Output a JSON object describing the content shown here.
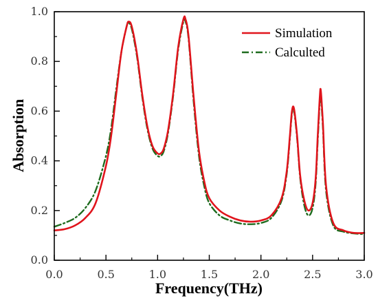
{
  "chart_data": {
    "type": "line",
    "title": "",
    "xlabel": "Frequency(THz)",
    "ylabel": "Absorption",
    "xlim": [
      0.0,
      3.0
    ],
    "ylim": [
      0.0,
      1.0
    ],
    "xticks": [
      "0.0",
      "0.5",
      "1.0",
      "1.5",
      "2.0",
      "2.5",
      "3.0"
    ],
    "yticks": [
      "0.0",
      "0.2",
      "0.4",
      "0.6",
      "0.8",
      "1.0"
    ],
    "grid": false,
    "legend_position": "top-right",
    "series": [
      {
        "name": "Simulation",
        "color": "#e0141c",
        "style": "solid",
        "x": [
          0.0,
          0.1,
          0.2,
          0.3,
          0.4,
          0.5,
          0.55,
          0.6,
          0.65,
          0.7,
          0.72,
          0.75,
          0.8,
          0.85,
          0.9,
          0.95,
          1.0,
          1.03,
          1.06,
          1.1,
          1.15,
          1.2,
          1.25,
          1.27,
          1.3,
          1.35,
          1.4,
          1.45,
          1.5,
          1.6,
          1.7,
          1.8,
          1.9,
          2.0,
          2.1,
          2.2,
          2.25,
          2.28,
          2.3,
          2.32,
          2.35,
          2.38,
          2.42,
          2.46,
          2.5,
          2.53,
          2.55,
          2.57,
          2.58,
          2.6,
          2.63,
          2.7,
          2.8,
          2.9,
          3.0
        ],
        "y": [
          0.12,
          0.125,
          0.14,
          0.17,
          0.23,
          0.38,
          0.5,
          0.67,
          0.84,
          0.94,
          0.96,
          0.94,
          0.83,
          0.67,
          0.54,
          0.46,
          0.43,
          0.43,
          0.45,
          0.52,
          0.67,
          0.86,
          0.97,
          0.97,
          0.9,
          0.65,
          0.44,
          0.32,
          0.25,
          0.2,
          0.175,
          0.16,
          0.155,
          0.16,
          0.18,
          0.25,
          0.36,
          0.5,
          0.6,
          0.61,
          0.5,
          0.34,
          0.24,
          0.2,
          0.23,
          0.33,
          0.5,
          0.66,
          0.68,
          0.55,
          0.3,
          0.15,
          0.12,
          0.11,
          0.11
        ]
      },
      {
        "name": "Calculted",
        "color": "#1e6b1e",
        "style": "dash-dot",
        "x": [
          0.0,
          0.1,
          0.2,
          0.3,
          0.4,
          0.5,
          0.55,
          0.6,
          0.65,
          0.7,
          0.72,
          0.75,
          0.8,
          0.85,
          0.9,
          0.95,
          1.0,
          1.03,
          1.06,
          1.1,
          1.15,
          1.2,
          1.25,
          1.27,
          1.3,
          1.35,
          1.4,
          1.45,
          1.5,
          1.6,
          1.7,
          1.8,
          1.9,
          2.0,
          2.1,
          2.2,
          2.25,
          2.28,
          2.3,
          2.32,
          2.35,
          2.38,
          2.42,
          2.46,
          2.5,
          2.53,
          2.55,
          2.57,
          2.58,
          2.6,
          2.63,
          2.7,
          2.8,
          2.9,
          3.0
        ],
        "y": [
          0.135,
          0.15,
          0.17,
          0.21,
          0.28,
          0.42,
          0.53,
          0.69,
          0.84,
          0.94,
          0.955,
          0.93,
          0.82,
          0.66,
          0.53,
          0.45,
          0.42,
          0.42,
          0.44,
          0.51,
          0.66,
          0.85,
          0.96,
          0.96,
          0.89,
          0.63,
          0.42,
          0.3,
          0.23,
          0.18,
          0.16,
          0.148,
          0.145,
          0.15,
          0.17,
          0.24,
          0.35,
          0.49,
          0.59,
          0.6,
          0.49,
          0.33,
          0.22,
          0.18,
          0.21,
          0.31,
          0.48,
          0.64,
          0.66,
          0.53,
          0.28,
          0.14,
          0.115,
          0.108,
          0.105
        ]
      }
    ]
  }
}
